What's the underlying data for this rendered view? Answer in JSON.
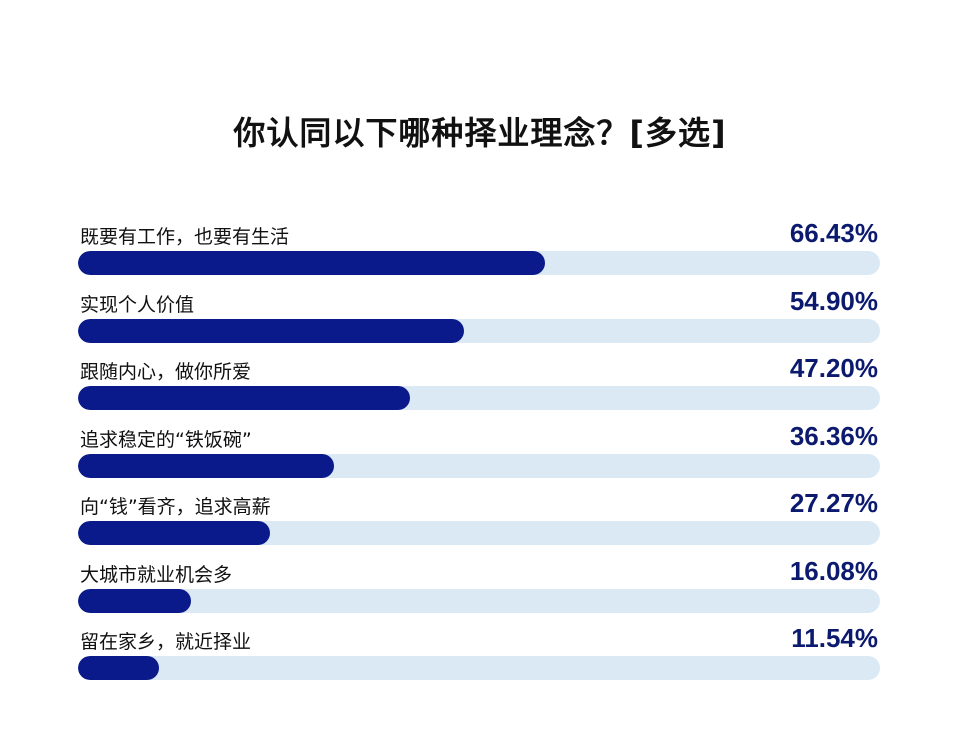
{
  "chart_data": {
    "type": "bar",
    "orientation": "horizontal",
    "title": "你认同以下哪种择业理念？[多选]",
    "categories": [
      "既要有工作，也要有生活",
      "实现个人价值",
      "跟随内心，做你所爱",
      "追求稳定的“铁饭碗”",
      "向“钱”看齐，追求高薪",
      "大城市就业机会多",
      "留在家乡，就近择业"
    ],
    "values": [
      66.43,
      54.9,
      47.2,
      36.36,
      27.27,
      16.08,
      11.54
    ],
    "value_labels": [
      "66.43%",
      "54.90%",
      "47.20%",
      "36.36%",
      "27.27%",
      "16.08%",
      "11.54%"
    ],
    "xlim": [
      0,
      114
    ],
    "colors": {
      "bar": "#0b1a8a",
      "track": "#dbe9f5",
      "value_text": "#0b1a6e"
    }
  }
}
